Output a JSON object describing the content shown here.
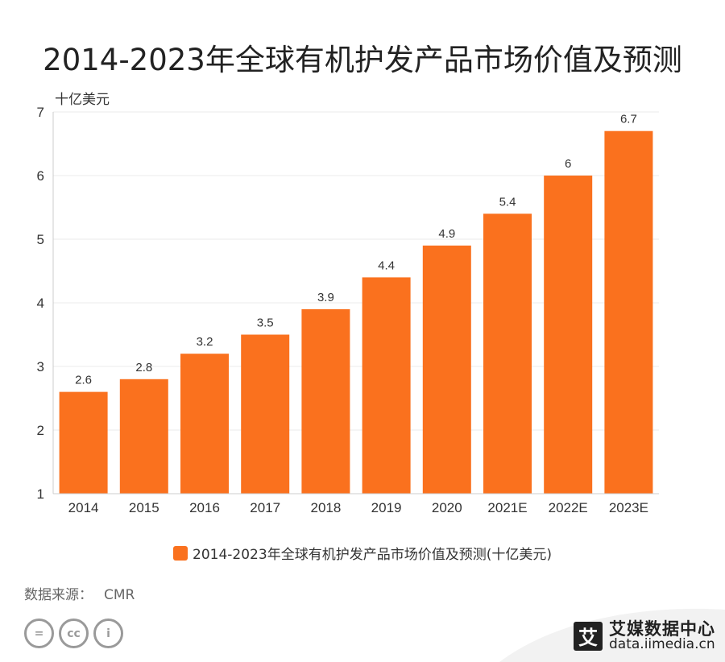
{
  "title": "2014-2023年全球有机护发产品市场价值及预测",
  "chart_data": {
    "type": "bar",
    "title": "2014-2023年全球有机护发产品市场价值及预测",
    "ylabel": "十亿美元",
    "xlabel": "",
    "ylim": [
      1,
      7
    ],
    "yticks": [
      1,
      2,
      3,
      4,
      5,
      6,
      7
    ],
    "categories": [
      "2014",
      "2015",
      "2016",
      "2017",
      "2018",
      "2019",
      "2020",
      "2021E",
      "2022E",
      "2023E"
    ],
    "series": [
      {
        "name": "2014-2023年全球有机护发产品市场价值及预测(十亿美元)",
        "values": [
          2.6,
          2.8,
          3.2,
          3.5,
          3.9,
          4.4,
          4.9,
          5.4,
          6,
          6.7
        ],
        "color": "#fa711e"
      }
    ],
    "data_labels": [
      "2.6",
      "2.8",
      "3.2",
      "3.5",
      "3.9",
      "4.4",
      "4.9",
      "5.4",
      "6",
      "6.7"
    ],
    "grid": true,
    "legend_position": "bottom"
  },
  "legend": {
    "label": "2014-2023年全球有机护发产品市场价值及预测(十亿美元)",
    "color": "#fa711e"
  },
  "source": {
    "label": "数据来源：",
    "value": "CMR"
  },
  "license_icons": [
    {
      "icon": "equals-icon",
      "glyph": "="
    },
    {
      "icon": "cc-icon",
      "glyph": "cc"
    },
    {
      "icon": "person-icon",
      "glyph": "i"
    }
  ],
  "brand": {
    "logo_glyph": "艾",
    "name": "艾媒数据中心",
    "url": "data.iimedia.cn"
  },
  "colors": {
    "bar": "#fa711e",
    "grid": "#ebebeb",
    "axis": "#cccccc",
    "footer_band": "#f2f2f2"
  }
}
